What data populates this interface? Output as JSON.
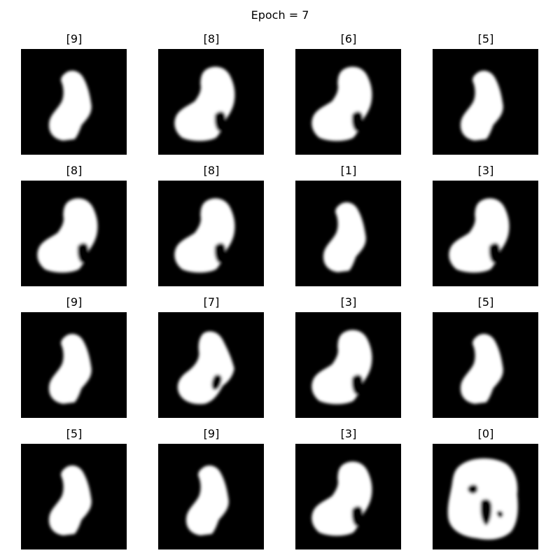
{
  "figure": {
    "title": "Epoch = 7",
    "colors": {
      "background": "#000000",
      "ink": "#ffffff",
      "page": "#ffffff"
    },
    "samples": [
      {
        "label": "[9]",
        "shape": "small-slim"
      },
      {
        "label": "[8]",
        "shape": "large-notch"
      },
      {
        "label": "[6]",
        "shape": "large-notch"
      },
      {
        "label": "[5]",
        "shape": "small-slim"
      },
      {
        "label": "[8]",
        "shape": "large-notch"
      },
      {
        "label": "[8]",
        "shape": "large-notch"
      },
      {
        "label": "[1]",
        "shape": "small-slim"
      },
      {
        "label": "[3]",
        "shape": "large-notch"
      },
      {
        "label": "[9]",
        "shape": "small-slim"
      },
      {
        "label": "[7]",
        "shape": "medium-notch"
      },
      {
        "label": "[3]",
        "shape": "large-notch"
      },
      {
        "label": "[5]",
        "shape": "small-slim"
      },
      {
        "label": "[5]",
        "shape": "small-slim"
      },
      {
        "label": "[9]",
        "shape": "small-slim"
      },
      {
        "label": "[3]",
        "shape": "large-notch"
      },
      {
        "label": "[0]",
        "shape": "blob-holes"
      }
    ]
  }
}
